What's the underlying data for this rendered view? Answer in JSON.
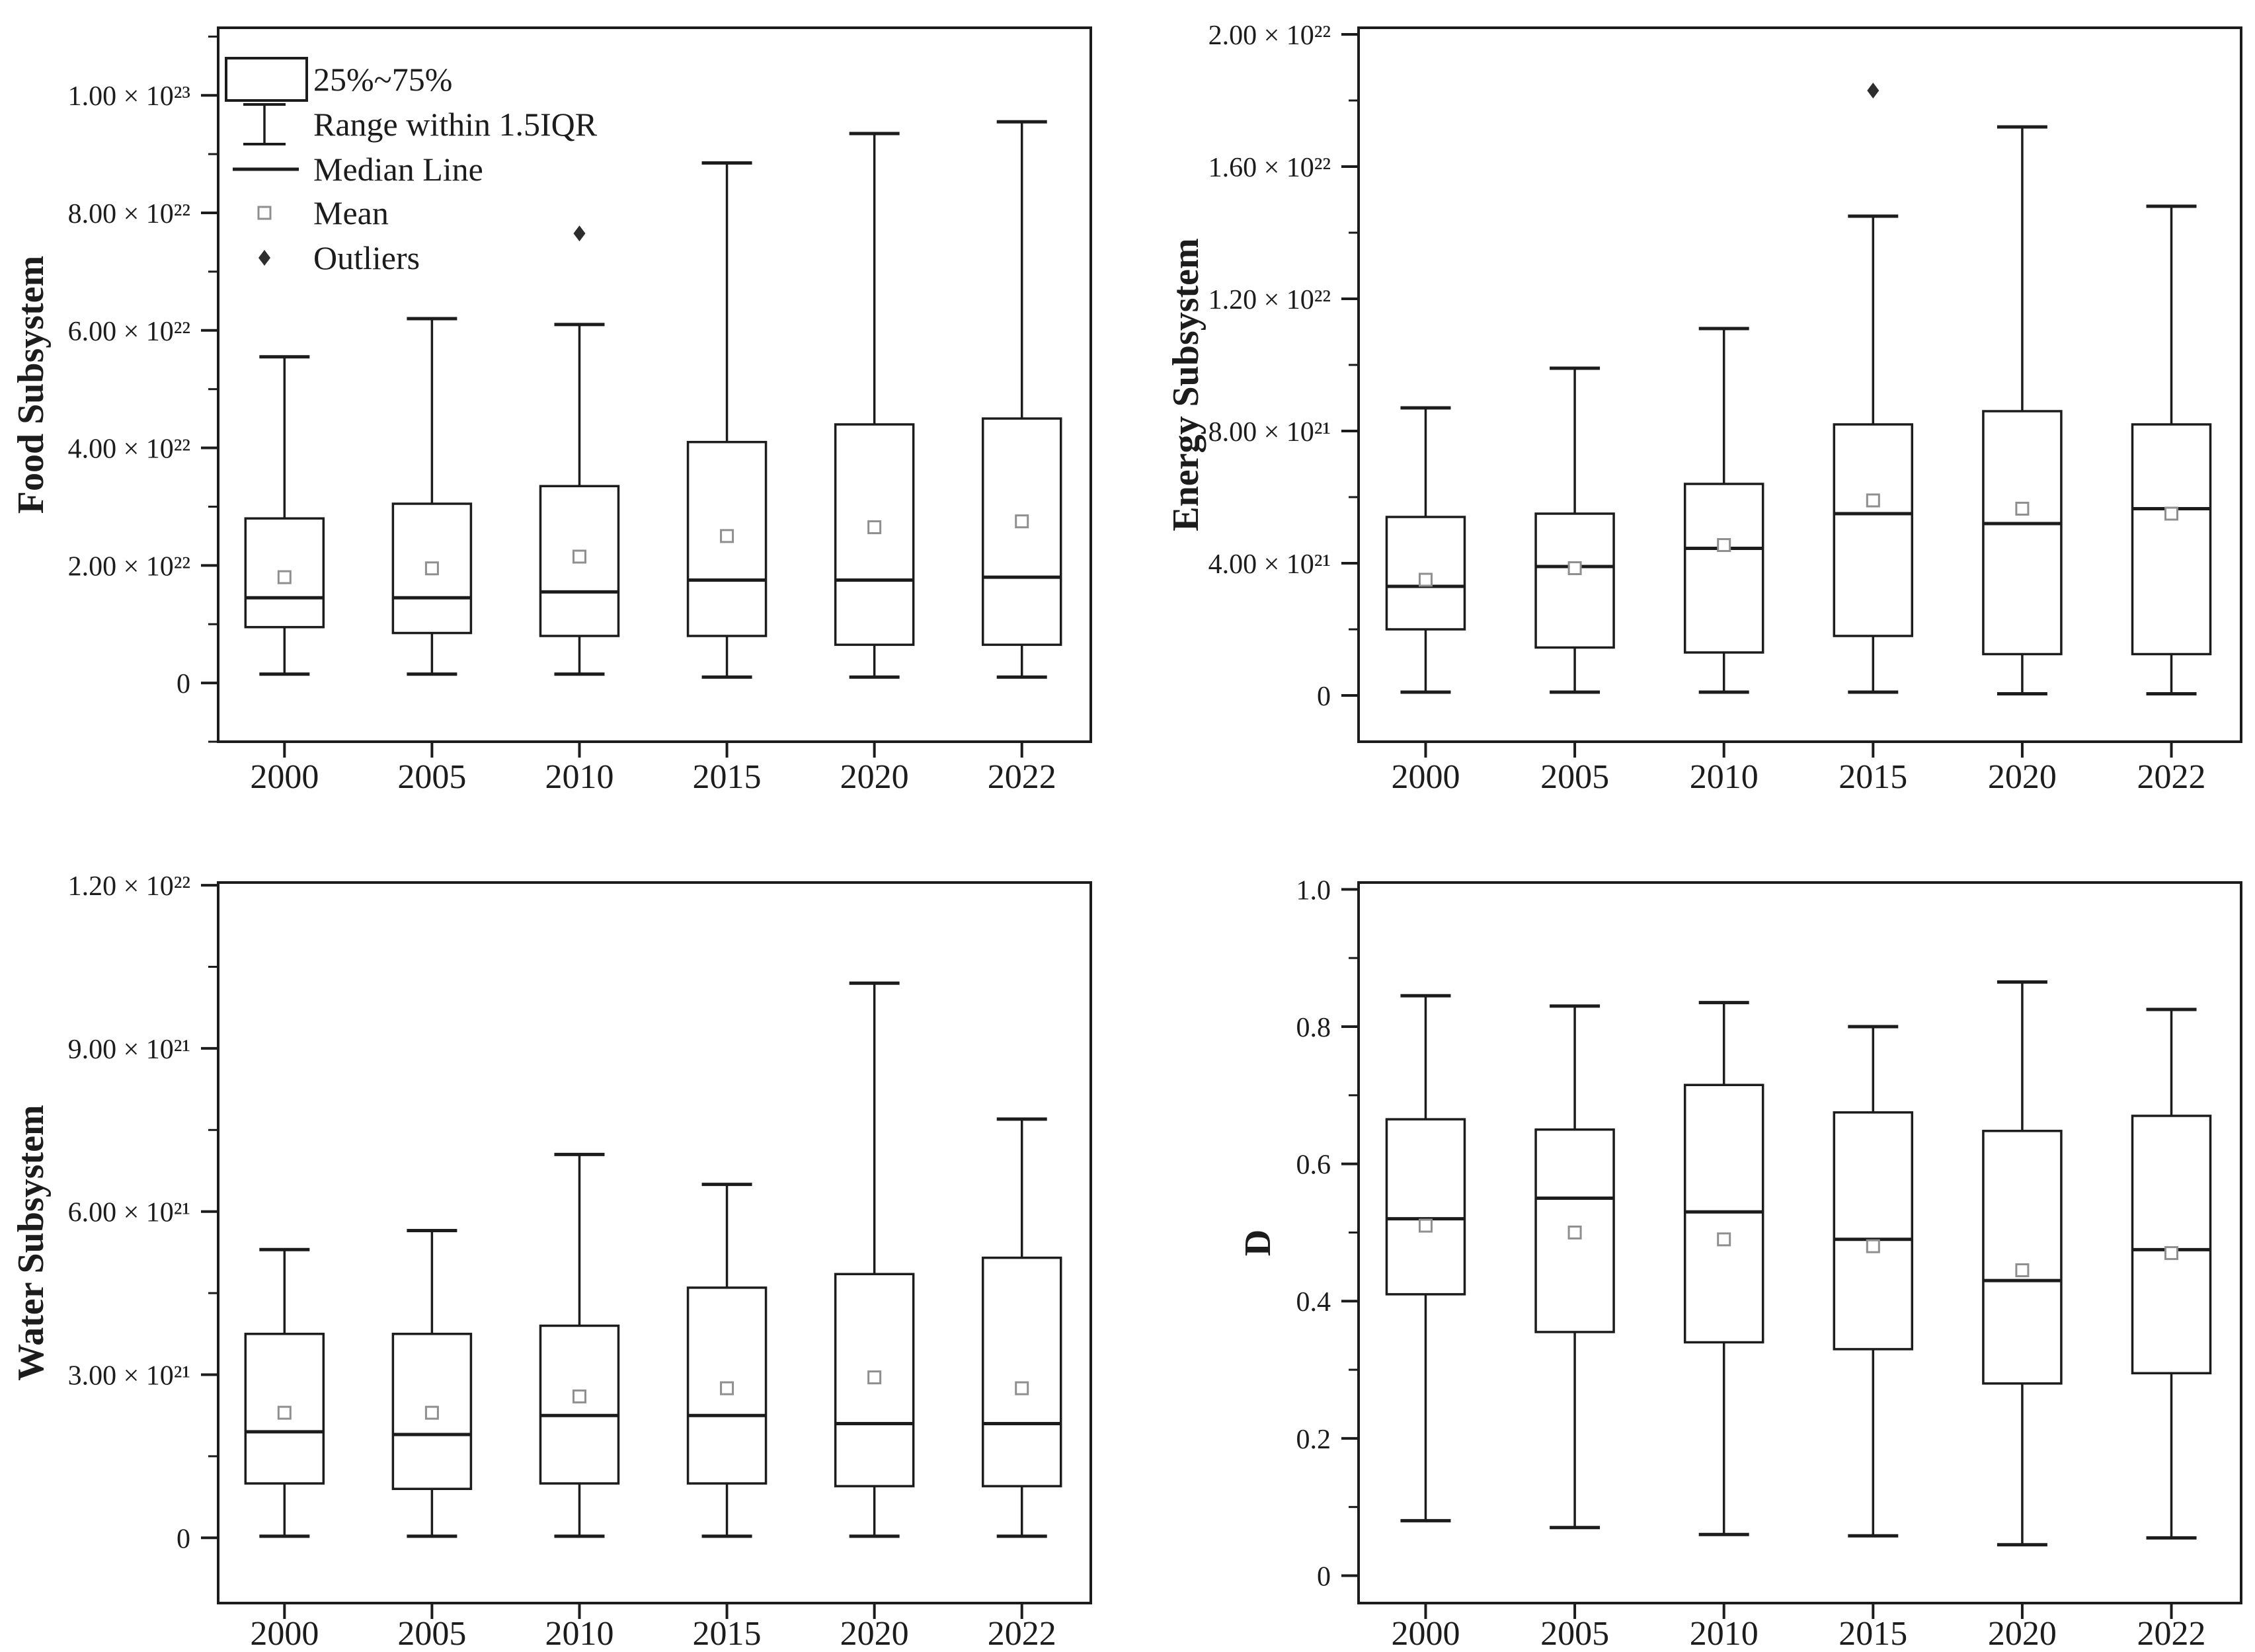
{
  "figure": {
    "background": "#ffffff",
    "ink_color": "#1c1c1c",
    "mean_marker_color": "#8f8f8f",
    "outlier_color": "#2d2d2d"
  },
  "legend": {
    "entries": [
      {
        "symbol": "iqr-box",
        "label": "25%~75%"
      },
      {
        "symbol": "whisker-range",
        "label": "Range within 1.5IQR"
      },
      {
        "symbol": "median-line",
        "label": "Median Line"
      },
      {
        "symbol": "mean-marker",
        "label": "Mean"
      },
      {
        "symbol": "outlier-marker",
        "label": "Outliers"
      }
    ]
  },
  "chart_data": [
    {
      "type": "boxplot",
      "name": "food-subsystem",
      "ylabel": "Food Subsystem",
      "categories": [
        "2000",
        "2005",
        "2010",
        "2015",
        "2020",
        "2022"
      ],
      "ylim": [
        -1e+22,
        1.115e+23
      ],
      "yticks": [
        {
          "v": 0,
          "label": "0"
        },
        {
          "v": 2e+22,
          "label": "2.00 × 10²²"
        },
        {
          "v": 4e+22,
          "label": "4.00 × 10²²"
        },
        {
          "v": 6e+22,
          "label": "6.00 × 10²²"
        },
        {
          "v": 8e+22,
          "label": "8.00 × 10²²"
        },
        {
          "v": 1e+23,
          "label": "1.00 × 10²³"
        }
      ],
      "boxes": [
        {
          "category": "2000",
          "low": 1.5e+21,
          "q1": 9.5e+21,
          "median": 1.45e+22,
          "q3": 2.8e+22,
          "high": 5.55e+22,
          "mean": 1.8e+22,
          "outliers": []
        },
        {
          "category": "2005",
          "low": 1.5e+21,
          "q1": 8.5e+21,
          "median": 1.45e+22,
          "q3": 3.05e+22,
          "high": 6.2e+22,
          "mean": 1.95e+22,
          "outliers": []
        },
        {
          "category": "2010",
          "low": 1.5e+21,
          "q1": 8e+21,
          "median": 1.55e+22,
          "q3": 3.35e+22,
          "high": 6.1e+22,
          "mean": 2.15e+22,
          "outliers": [
            7.65e+22
          ]
        },
        {
          "category": "2015",
          "low": 1e+21,
          "q1": 8e+21,
          "median": 1.75e+22,
          "q3": 4.1e+22,
          "high": 8.85e+22,
          "mean": 2.5e+22,
          "outliers": []
        },
        {
          "category": "2020",
          "low": 1e+21,
          "q1": 6.5e+21,
          "median": 1.75e+22,
          "q3": 4.4e+22,
          "high": 9.35e+22,
          "mean": 2.65e+22,
          "outliers": []
        },
        {
          "category": "2022",
          "low": 1e+21,
          "q1": 6.5e+21,
          "median": 1.8e+22,
          "q3": 4.5e+22,
          "high": 9.55e+22,
          "mean": 2.75e+22,
          "outliers": []
        }
      ],
      "legend_visible": true
    },
    {
      "type": "boxplot",
      "name": "energy-subsystem",
      "ylabel": "Energy Subsystem",
      "categories": [
        "2000",
        "2005",
        "2010",
        "2015",
        "2020",
        "2022"
      ],
      "ylim": [
        -1.4e+21,
        2.02e+22
      ],
      "yticks": [
        {
          "v": 0,
          "label": "0"
        },
        {
          "v": 4e+21,
          "label": "4.00 × 10²¹"
        },
        {
          "v": 8e+21,
          "label": "8.00 × 10²¹"
        },
        {
          "v": 1.2e+22,
          "label": "1.20 × 10²²"
        },
        {
          "v": 1.6e+22,
          "label": "1.60 × 10²²"
        },
        {
          "v": 2e+22,
          "label": "2.00 × 10²²"
        }
      ],
      "boxes": [
        {
          "category": "2000",
          "low": 1e+20,
          "q1": 2e+21,
          "median": 3.3e+21,
          "q3": 5.4e+21,
          "high": 8.7e+21,
          "mean": 3.5e+21,
          "outliers": []
        },
        {
          "category": "2005",
          "low": 1e+20,
          "q1": 1.45e+21,
          "median": 3.9e+21,
          "q3": 5.5e+21,
          "high": 9.9e+21,
          "mean": 3.85e+21,
          "outliers": []
        },
        {
          "category": "2010",
          "low": 1e+20,
          "q1": 1.3e+21,
          "median": 4.45e+21,
          "q3": 6.4e+21,
          "high": 1.11e+22,
          "mean": 4.55e+21,
          "outliers": []
        },
        {
          "category": "2015",
          "low": 1e+20,
          "q1": 1.8e+21,
          "median": 5.5e+21,
          "q3": 8.2e+21,
          "high": 1.45e+22,
          "mean": 5.9e+21,
          "outliers": [
            1.83e+22
          ]
        },
        {
          "category": "2020",
          "low": 5e+19,
          "q1": 1.25e+21,
          "median": 5.2e+21,
          "q3": 8.6e+21,
          "high": 1.72e+22,
          "mean": 5.65e+21,
          "outliers": []
        },
        {
          "category": "2022",
          "low": 5e+19,
          "q1": 1.25e+21,
          "median": 5.65e+21,
          "q3": 8.2e+21,
          "high": 1.48e+22,
          "mean": 5.5e+21,
          "outliers": []
        }
      ],
      "legend_visible": false
    },
    {
      "type": "boxplot",
      "name": "water-subsystem",
      "ylabel": "Water Subsystem",
      "categories": [
        "2000",
        "2005",
        "2010",
        "2015",
        "2020",
        "2022"
      ],
      "ylim": [
        -1.2e+21,
        1.205e+22
      ],
      "yticks": [
        {
          "v": 0,
          "label": "0"
        },
        {
          "v": 3e+21,
          "label": "3.00 × 10²¹"
        },
        {
          "v": 6e+21,
          "label": "6.00 × 10²¹"
        },
        {
          "v": 9e+21,
          "label": "9.00 × 10²¹"
        },
        {
          "v": 1.2e+22,
          "label": "1.20 × 10²²"
        }
      ],
      "boxes": [
        {
          "category": "2000",
          "low": 3e+19,
          "q1": 1e+21,
          "median": 1.95e+21,
          "q3": 3.75e+21,
          "high": 5.3e+21,
          "mean": 2.3e+21,
          "outliers": []
        },
        {
          "category": "2005",
          "low": 3e+19,
          "q1": 9e+20,
          "median": 1.9e+21,
          "q3": 3.75e+21,
          "high": 5.65e+21,
          "mean": 2.3e+21,
          "outliers": []
        },
        {
          "category": "2010",
          "low": 3e+19,
          "q1": 1e+21,
          "median": 2.25e+21,
          "q3": 3.9e+21,
          "high": 7.05e+21,
          "mean": 2.6e+21,
          "outliers": []
        },
        {
          "category": "2015",
          "low": 3e+19,
          "q1": 1e+21,
          "median": 2.25e+21,
          "q3": 4.6e+21,
          "high": 6.5e+21,
          "mean": 2.75e+21,
          "outliers": []
        },
        {
          "category": "2020",
          "low": 3e+19,
          "q1": 9.5e+20,
          "median": 2.1e+21,
          "q3": 4.85e+21,
          "high": 1.02e+22,
          "mean": 2.95e+21,
          "outliers": []
        },
        {
          "category": "2022",
          "low": 3e+19,
          "q1": 9.5e+20,
          "median": 2.1e+21,
          "q3": 5.15e+21,
          "high": 7.7e+21,
          "mean": 2.75e+21,
          "outliers": []
        }
      ],
      "legend_visible": false
    },
    {
      "type": "boxplot",
      "name": "d-index",
      "ylabel": "D",
      "categories": [
        "2000",
        "2005",
        "2010",
        "2015",
        "2020",
        "2022"
      ],
      "ylim": [
        -0.04,
        1.01
      ],
      "yticks": [
        {
          "v": 0,
          "label": "0"
        },
        {
          "v": 0.2,
          "label": "0.2"
        },
        {
          "v": 0.4,
          "label": "0.4"
        },
        {
          "v": 0.6,
          "label": "0.6"
        },
        {
          "v": 0.8,
          "label": "0.8"
        },
        {
          "v": 1.0,
          "label": "1.0"
        }
      ],
      "boxes": [
        {
          "category": "2000",
          "low": 0.08,
          "q1": 0.41,
          "median": 0.52,
          "q3": 0.665,
          "high": 0.845,
          "mean": 0.51,
          "outliers": []
        },
        {
          "category": "2005",
          "low": 0.07,
          "q1": 0.355,
          "median": 0.55,
          "q3": 0.65,
          "high": 0.83,
          "mean": 0.5,
          "outliers": []
        },
        {
          "category": "2010",
          "low": 0.06,
          "q1": 0.34,
          "median": 0.53,
          "q3": 0.715,
          "high": 0.835,
          "mean": 0.49,
          "outliers": []
        },
        {
          "category": "2015",
          "low": 0.058,
          "q1": 0.33,
          "median": 0.49,
          "q3": 0.675,
          "high": 0.8,
          "mean": 0.48,
          "outliers": []
        },
        {
          "category": "2020",
          "low": 0.045,
          "q1": 0.28,
          "median": 0.43,
          "q3": 0.648,
          "high": 0.865,
          "mean": 0.445,
          "outliers": []
        },
        {
          "category": "2022",
          "low": 0.055,
          "q1": 0.295,
          "median": 0.475,
          "q3": 0.67,
          "high": 0.825,
          "mean": 0.47,
          "outliers": []
        }
      ],
      "legend_visible": false
    }
  ]
}
